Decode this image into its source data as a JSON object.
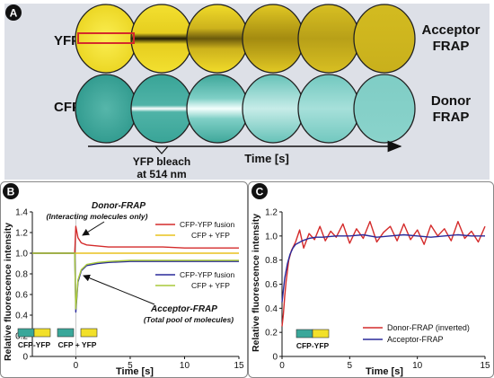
{
  "panels": {
    "a": {
      "letter": "A",
      "row_labels": [
        "YFP",
        "CFP"
      ],
      "right_labels": [
        [
          "Acceptor",
          "FRAP"
        ],
        [
          "Donor",
          "FRAP"
        ]
      ],
      "time_axis_label": "Time [s]",
      "bleach_label": [
        "YFP bleach",
        "at 514 nm"
      ],
      "colors": {
        "background": "#dde0e7",
        "yfp": "#f2e02a",
        "yfp_dark": "#b39a12",
        "cfp": "#3aa79a",
        "cfp_light": "#8fd3cd",
        "bleach_box": "#d42b2b"
      }
    },
    "b": {
      "letter": "B",
      "ylabel": "Relative fluorescence intensity",
      "xlabel": "Time [s]",
      "annotation_top": [
        "Donor-FRAP",
        "(Interacting molecules only)"
      ],
      "annotation_bottom": [
        "Acceptor-FRAP",
        "(Total pool of molecules)"
      ],
      "legend_top": [
        "CFP-YFP fusion",
        "CFP + YFP"
      ],
      "legend_bottom": [
        "CFP-YFP fusion",
        "CFP + YFP"
      ],
      "construct_labels": [
        "CFP-YFP",
        "CFP + YFP"
      ]
    },
    "c": {
      "letter": "C",
      "ylabel": "Relative fluorescence intensity",
      "xlabel": "Time [s]",
      "legend": [
        "Donor-FRAP (inverted)",
        "Acceptor-FRAP"
      ],
      "construct_label": "CFP-YFP"
    }
  },
  "chart_data": [
    {
      "type": "line",
      "panel": "B",
      "xlim": [
        -4,
        15
      ],
      "ylim": [
        0,
        1.4
      ],
      "x_ticks": [
        0,
        5,
        10,
        15
      ],
      "y_ticks": [
        0,
        0.2,
        0.4,
        0.6,
        0.8,
        1.0,
        1.2,
        1.4
      ],
      "y_tick_labels": [
        "0",
        "0.2",
        "0.4",
        "0.6",
        "0.8",
        "1.0",
        "1.2",
        "1.4"
      ],
      "grid": false,
      "legend_position": "right",
      "series": [
        {
          "name": "CFP-YFP fusion",
          "group": "Donor-FRAP",
          "color": "#d42b2b",
          "x": [
            -4,
            -2,
            -0.1,
            0,
            0.2,
            0.5,
            1,
            2,
            3,
            5,
            8,
            10,
            12,
            15
          ],
          "y": [
            1.0,
            1.0,
            1.0,
            1.26,
            1.15,
            1.1,
            1.08,
            1.07,
            1.06,
            1.06,
            1.06,
            1.05,
            1.05,
            1.05
          ]
        },
        {
          "name": "CFP + YFP",
          "group": "Donor-FRAP",
          "color": "#e8c21e",
          "x": [
            -4,
            0,
            2,
            5,
            10,
            15
          ],
          "y": [
            1.0,
            1.0,
            1.0,
            1.0,
            1.0,
            1.0
          ]
        },
        {
          "name": "CFP-YFP fusion",
          "group": "Acceptor-FRAP",
          "color": "#2a2a9a",
          "x": [
            -4,
            -2,
            -0.1,
            0,
            0.2,
            0.5,
            1,
            2,
            3,
            5,
            8,
            10,
            12,
            15
          ],
          "y": [
            1.0,
            1.0,
            1.0,
            0.43,
            0.72,
            0.83,
            0.88,
            0.9,
            0.91,
            0.92,
            0.92,
            0.92,
            0.92,
            0.92
          ]
        },
        {
          "name": "CFP + YFP",
          "group": "Acceptor-FRAP",
          "color": "#a8c83a",
          "x": [
            -4,
            -2,
            -0.1,
            0,
            0.2,
            0.5,
            1,
            2,
            3,
            5,
            8,
            10,
            12,
            15
          ],
          "y": [
            1.0,
            1.0,
            1.0,
            0.46,
            0.74,
            0.84,
            0.89,
            0.91,
            0.92,
            0.93,
            0.93,
            0.93,
            0.93,
            0.93
          ]
        }
      ]
    },
    {
      "type": "line",
      "panel": "C",
      "xlim": [
        0,
        15
      ],
      "ylim": [
        0,
        1.2
      ],
      "x_ticks": [
        0,
        5,
        10,
        15
      ],
      "y_ticks": [
        0,
        0.2,
        0.4,
        0.6,
        0.8,
        1.0,
        1.2
      ],
      "y_tick_labels": [
        "0",
        "0.2",
        "0.4",
        "0.6",
        "0.8",
        "1.0",
        "1.2"
      ],
      "grid": false,
      "legend_position": "bottom-right",
      "series": [
        {
          "name": "Donor-FRAP (inverted)",
          "color": "#d42b2b",
          "x": [
            0,
            0.1,
            0.2,
            0.3,
            0.5,
            0.7,
            1.0,
            1.3,
            1.6,
            2.0,
            2.4,
            2.8,
            3.2,
            3.6,
            4.0,
            4.5,
            5.0,
            5.5,
            6.0,
            6.5,
            7.0,
            7.5,
            8.0,
            8.5,
            9.0,
            9.5,
            10.0,
            10.5,
            11.0,
            11.5,
            12.0,
            12.5,
            13.0,
            13.5,
            14.0,
            14.5,
            15.0
          ],
          "y": [
            0.25,
            0.35,
            0.5,
            0.62,
            0.8,
            0.88,
            0.95,
            1.05,
            0.9,
            1.02,
            0.97,
            1.08,
            0.96,
            1.04,
            0.99,
            1.1,
            0.94,
            1.06,
            0.98,
            1.12,
            0.95,
            1.03,
            1.08,
            0.96,
            1.1,
            0.97,
            1.05,
            0.93,
            1.09,
            1.0,
            1.06,
            0.96,
            1.12,
            0.98,
            1.04,
            0.95,
            1.08
          ]
        },
        {
          "name": "Acceptor-FRAP",
          "color": "#2a2a9a",
          "x": [
            0,
            0.1,
            0.2,
            0.4,
            0.6,
            0.8,
            1.0,
            1.5,
            2.0,
            2.5,
            3.0,
            4.0,
            5.0,
            6.0,
            7.0,
            8.0,
            9.0,
            10.0,
            11.0,
            12.0,
            13.0,
            14.0,
            15.0
          ],
          "y": [
            0.45,
            0.55,
            0.65,
            0.77,
            0.85,
            0.9,
            0.93,
            0.96,
            0.98,
            0.99,
            0.99,
            1.0,
            1.0,
            1.01,
            0.99,
            1.0,
            1.01,
            1.0,
            0.99,
            1.0,
            1.01,
            1.0,
            1.0
          ]
        }
      ]
    }
  ]
}
